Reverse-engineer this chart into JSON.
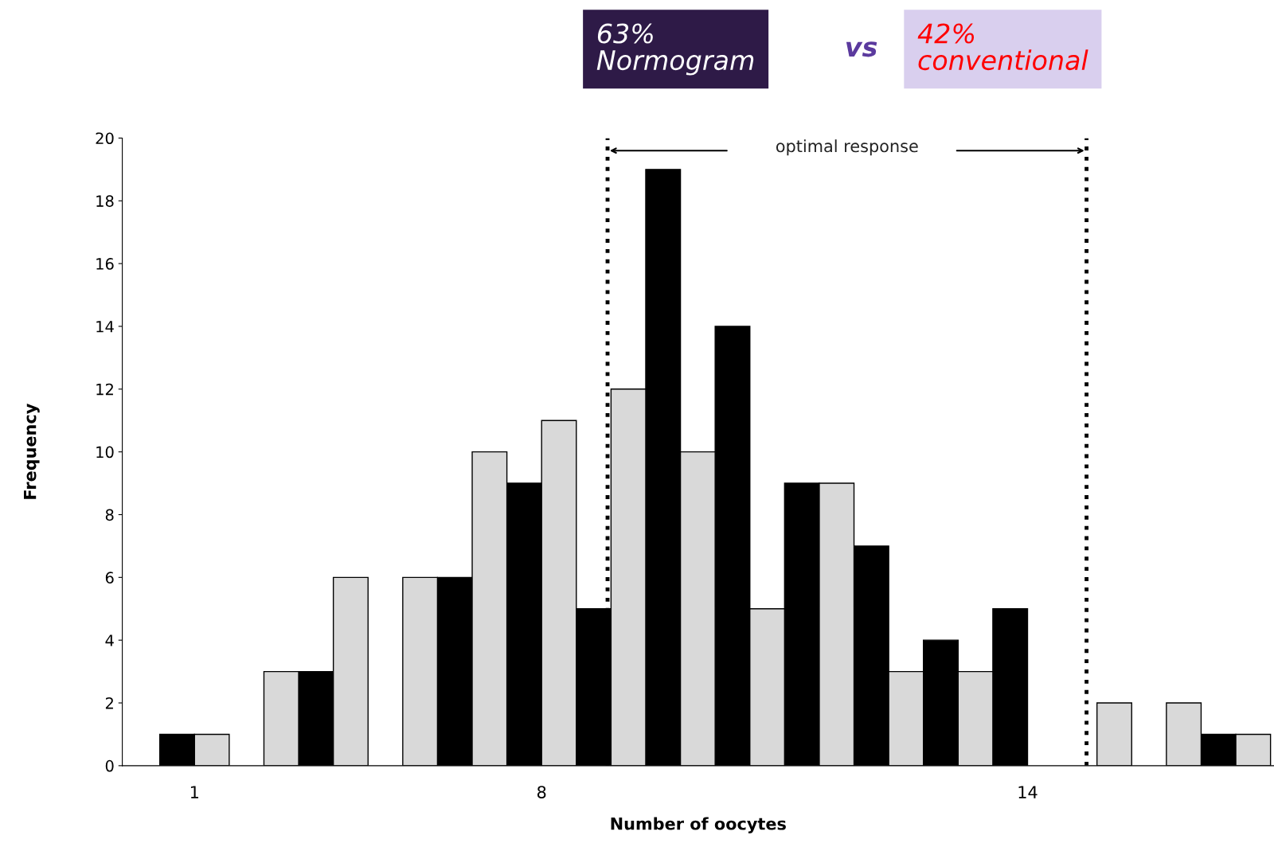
{
  "chart_data": {
    "type": "bar",
    "categories": [
      "1",
      null,
      null,
      null,
      null,
      "8",
      null,
      null,
      null,
      null,
      null,
      null,
      "14",
      null,
      null,
      null
    ],
    "series": [
      {
        "color": "#000000",
        "values": [
          1,
          0,
          3,
          0,
          6,
          9,
          5,
          19,
          14,
          9,
          7,
          4,
          5,
          0,
          0,
          1
        ]
      },
      {
        "color": "#d9d9d9",
        "values": [
          1,
          3,
          6,
          6,
          10,
          11,
          12,
          10,
          5,
          9,
          3,
          3,
          0,
          2,
          2,
          1
        ]
      }
    ],
    "xlabel": "Number of oocytes",
    "ylabel": "Frequency",
    "ylim": [
      0,
      20
    ],
    "yticks": [
      0,
      2,
      4,
      6,
      8,
      10,
      12,
      14,
      16,
      18,
      20
    ],
    "annotations": [
      "optimal response",
      "63% Normogram",
      "vs",
      "42% conventional"
    ]
  }
}
